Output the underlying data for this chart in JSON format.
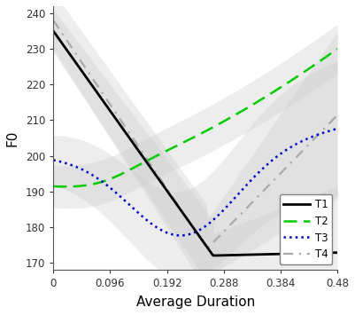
{
  "title": "",
  "xlabel": "Average Duration",
  "ylabel": "F0",
  "xlim": [
    0,
    0.48
  ],
  "ylim": [
    168,
    242
  ],
  "yticks": [
    170,
    180,
    190,
    200,
    210,
    220,
    230,
    240
  ],
  "xticks": [
    0,
    0.096,
    0.192,
    0.288,
    0.384,
    0.48
  ],
  "xtick_labels": [
    "0",
    "0.096",
    "0.192",
    "0.288",
    "0.384",
    "0.48"
  ],
  "background_color": "#ffffff",
  "t1_color": "#000000",
  "t2_color": "#00cc00",
  "t3_color": "#0000cc",
  "t4_color": "#aaaaaa",
  "shading_color": "#cccccc"
}
